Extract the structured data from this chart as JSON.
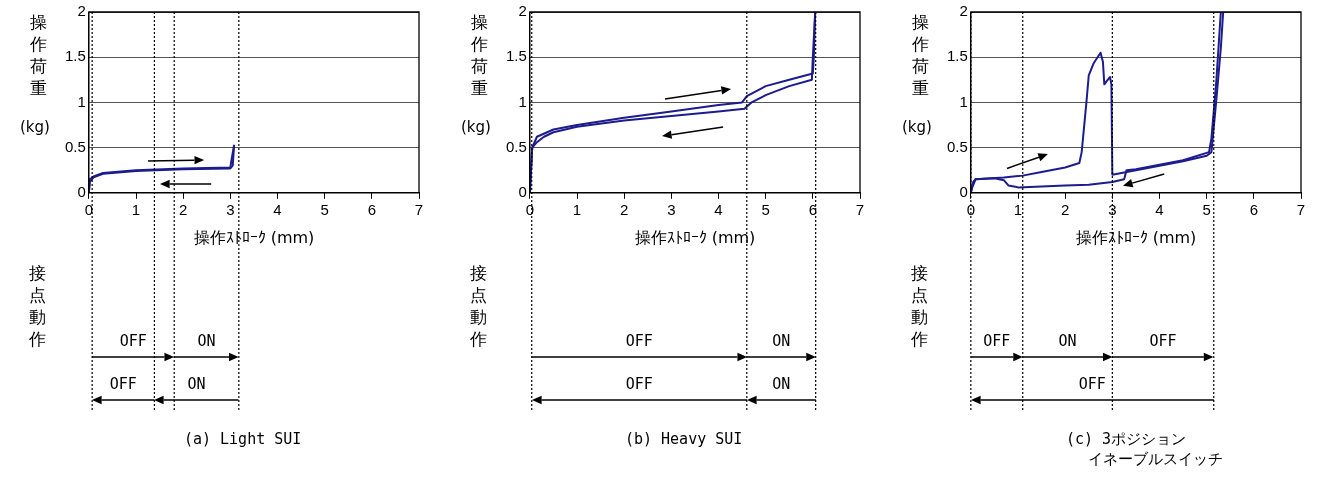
{
  "chart_data": [
    {
      "type": "line",
      "title": "(a) Light SUI",
      "xlabel": "操作ｽﾄﾛｰｸ (mm)",
      "ylabel": "操作荷重(kg)",
      "xlim": [
        0,
        7
      ],
      "xticks": [
        0,
        1,
        2,
        3,
        4,
        5,
        6,
        7
      ],
      "ylim": [
        0,
        2
      ],
      "yticks": [
        0,
        0.5,
        1,
        1.5,
        2
      ],
      "grid": "y",
      "ref_lines": [
        {
          "axis": "x",
          "value": 0.07,
          "color": "#000000",
          "line_style": "dotted"
        },
        {
          "axis": "x",
          "value": 1.39,
          "color": "#000000",
          "line_style": "dotted"
        },
        {
          "axis": "x",
          "value": 1.81,
          "color": "#000000",
          "line_style": "dotted"
        },
        {
          "axis": "x",
          "value": 3.18,
          "color": "#000000",
          "line_style": "dotted"
        }
      ],
      "annotations": [
        "接点動作",
        "OFF",
        "ON",
        "OFF",
        "ON"
      ],
      "series": [
        {
          "color": "#1c1c8e",
          "x": [
            0,
            0.02,
            0.1,
            0.3,
            1,
            2,
            3,
            3.02,
            3.08
          ],
          "values": [
            0,
            0.15,
            0.18,
            0.22,
            0.25,
            0.27,
            0.28,
            0.35,
            0.53
          ]
        },
        {
          "color": "#1c1c8e",
          "x": [
            3.08,
            3.05,
            3,
            2,
            1,
            0.3,
            0.1,
            0.02,
            0
          ],
          "values": [
            0.53,
            0.3,
            0.27,
            0.26,
            0.24,
            0.21,
            0.17,
            0.12,
            0
          ]
        }
      ]
    },
    {
      "type": "line",
      "title": "(b) Heavy SUI",
      "xlabel": "操作ｽﾄﾛｰｸ (mm)",
      "ylabel": "操作荷重(kg)",
      "xlim": [
        0,
        7
      ],
      "xticks": [
        0,
        1,
        2,
        3,
        4,
        5,
        6,
        7
      ],
      "ylim": [
        0,
        2
      ],
      "yticks": [
        0,
        0.5,
        1,
        1.5,
        2
      ],
      "grid": "y",
      "ref_lines": [
        {
          "axis": "x",
          "value": 0.04,
          "color": "#000000",
          "line_style": "dotted"
        },
        {
          "axis": "x",
          "value": 4.6,
          "color": "#000000",
          "line_style": "dotted"
        },
        {
          "axis": "x",
          "value": 6.06,
          "color": "#000000",
          "line_style": "dotted"
        }
      ],
      "annotations": [
        "接点動作",
        "OFF",
        "ON",
        "OFF",
        "ON"
      ],
      "series": [
        {
          "color": "#1c1c8e",
          "x": [
            0,
            0.05,
            0.15,
            0.5,
            1,
            2,
            3,
            4,
            4.5,
            4.6,
            5,
            5.5,
            6,
            6.02,
            6.05
          ],
          "values": [
            0,
            0.5,
            0.62,
            0.7,
            0.75,
            0.83,
            0.9,
            0.97,
            1,
            1.07,
            1.18,
            1.25,
            1.32,
            1.5,
            2
          ]
        },
        {
          "color": "#1c1c8e",
          "x": [
            6.05,
            6,
            5.98,
            5.5,
            5,
            4.7,
            4.55,
            4,
            3,
            2,
            1,
            0.5,
            0.3,
            0.15,
            0.05,
            0
          ],
          "values": [
            2,
            1.5,
            1.25,
            1.18,
            1.08,
            1,
            0.93,
            0.9,
            0.85,
            0.8,
            0.73,
            0.67,
            0.62,
            0.56,
            0.5,
            0
          ]
        }
      ]
    },
    {
      "type": "line",
      "title": "(c) 3ポジション",
      "subtitle": "イネーブルスイッチ",
      "xlabel": "操作ｽﾄﾛｰｸ (mm)",
      "ylabel": "操作荷重(kg)",
      "xlim": [
        0,
        7
      ],
      "xticks": [
        0,
        1,
        2,
        3,
        4,
        5,
        6,
        7
      ],
      "ylim": [
        0,
        2
      ],
      "yticks": [
        0,
        0.5,
        1,
        1.5,
        2
      ],
      "grid": "y",
      "ref_lines": [
        {
          "axis": "x",
          "value": 0,
          "color": "#000000",
          "line_style": "dotted"
        },
        {
          "axis": "x",
          "value": 1.1,
          "color": "#000000",
          "line_style": "dotted"
        },
        {
          "axis": "x",
          "value": 3,
          "color": "#000000",
          "line_style": "dotted"
        },
        {
          "axis": "x",
          "value": 5.15,
          "color": "#000000",
          "line_style": "dotted"
        }
      ],
      "annotations": [
        "接点動作",
        "OFF",
        "ON",
        "OFF",
        "OFF"
      ],
      "series": [
        {
          "color": "#1c1c8e",
          "x": [
            0,
            0.05,
            0.1,
            0.7,
            1.1,
            1.5,
            2,
            2.3,
            2.35,
            2.45,
            2.5,
            2.6,
            2.75,
            2.8,
            2.83,
            2.9,
            2.95,
            2.98,
            3,
            3.5,
            4,
            4.5,
            5,
            5.1,
            5.2,
            5.3,
            5.35
          ],
          "values": [
            0,
            0.12,
            0.15,
            0.17,
            0.19,
            0.23,
            0.28,
            0.33,
            0.45,
            1,
            1.3,
            1.43,
            1.55,
            1.45,
            1.2,
            1.25,
            1.28,
            1.2,
            0.2,
            0.25,
            0.3,
            0.35,
            0.41,
            0.45,
            1,
            1.6,
            2
          ]
        },
        {
          "color": "#1c1c8e",
          "x": [
            5.3,
            5.2,
            5.1,
            5.05,
            4.5,
            4,
            3.5,
            3.3,
            3.25,
            3,
            2.5,
            2,
            1.5,
            1,
            0.8,
            0.7,
            0.5,
            0.1,
            0.02,
            0
          ],
          "values": [
            2,
            1.2,
            0.6,
            0.45,
            0.36,
            0.31,
            0.26,
            0.25,
            0.15,
            0.12,
            0.09,
            0.08,
            0.07,
            0.06,
            0.08,
            0.14,
            0.16,
            0.15,
            0.05,
            0
          ]
        }
      ]
    }
  ]
}
